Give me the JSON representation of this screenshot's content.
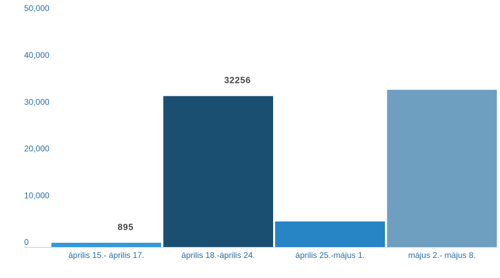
{
  "chart_data": {
    "type": "bar",
    "categories": [
      "április 15.- április 17.",
      "április 18.-április 24.",
      "április 25.-május 1.",
      "május 2.- május 8."
    ],
    "values": [
      895,
      32256,
      5450,
      33600
    ],
    "value_labels": [
      "895",
      "32256",
      null,
      null
    ],
    "colors": [
      "#3399db",
      "#1b4f72",
      "#2784c5",
      "#6f9fc0"
    ],
    "ylim": [
      0,
      50000
    ],
    "yticks": [
      0,
      {
        "value": 10000,
        "label": "10,000"
      },
      {
        "value": 20000,
        "label": "20,000"
      },
      {
        "value": 30000,
        "label": "30,000"
      },
      {
        "value": 40000,
        "label": "40,000"
      },
      {
        "value": 50000,
        "label": "50,000"
      }
    ],
    "grid": false
  }
}
